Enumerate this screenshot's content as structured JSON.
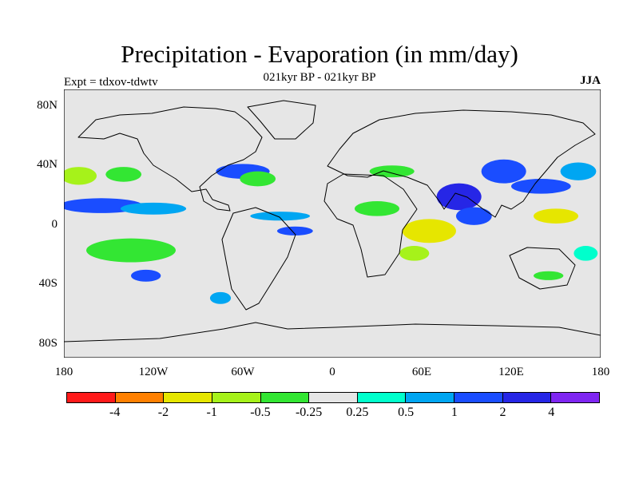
{
  "title": "Precipitation - Evaporation (in mm/day)",
  "subtitle": "021kyr BP - 021kyr BP",
  "experiment": "Expt = tdxov-tdwtv",
  "season": "JJA",
  "axes": {
    "y_ticks": [
      "80N",
      "40N",
      "0",
      "40S",
      "80S"
    ],
    "x_ticks": [
      "180",
      "120W",
      "60W",
      "0",
      "60E",
      "120E",
      "180"
    ]
  },
  "colorbar": {
    "colors": [
      "#ff1a1a",
      "#ff8000",
      "#e6e600",
      "#a6f21a",
      "#33e633",
      "#e6e6e6",
      "#00ffcc",
      "#00a6f2",
      "#1a4dff",
      "#2626e6",
      "#7f26f2"
    ],
    "labels": [
      "-4",
      "-2",
      "-1",
      "-0.5",
      "-0.25",
      "0.25",
      "0.5",
      "1",
      "2",
      "4"
    ]
  },
  "chart_data": {
    "type": "heatmap",
    "title": "Precipitation - Evaporation (in mm/day)",
    "subtitle": "021kyr BP - 021kyr BP",
    "xlim": [
      -180,
      180
    ],
    "ylim": [
      -90,
      90
    ],
    "levels": [
      -4,
      -2,
      -1,
      -0.5,
      -0.25,
      0.25,
      0.5,
      1,
      2,
      4
    ],
    "background": "#e6e6e6",
    "regions": [
      {
        "lon": -155,
        "lat": 12,
        "lon_radius": 28,
        "lat_radius": 5,
        "value": 1.5
      },
      {
        "lon": -120,
        "lat": 10,
        "lon_radius": 22,
        "lat_radius": 4,
        "value": 0.7
      },
      {
        "lon": -170,
        "lat": 32,
        "lon_radius": 12,
        "lat_radius": 6,
        "value": -0.7
      },
      {
        "lon": -140,
        "lat": 33,
        "lon_radius": 12,
        "lat_radius": 5,
        "value": -0.3
      },
      {
        "lon": -135,
        "lat": -18,
        "lon_radius": 30,
        "lat_radius": 8,
        "value": -0.3
      },
      {
        "lon": -125,
        "lat": -35,
        "lon_radius": 10,
        "lat_radius": 4,
        "value": 1.5
      },
      {
        "lon": -60,
        "lat": 35,
        "lon_radius": 18,
        "lat_radius": 5,
        "value": 1.5
      },
      {
        "lon": -50,
        "lat": 30,
        "lon_radius": 12,
        "lat_radius": 5,
        "value": -0.5
      },
      {
        "lon": -35,
        "lat": 5,
        "lon_radius": 20,
        "lat_radius": 3,
        "value": 0.6
      },
      {
        "lon": -25,
        "lat": -5,
        "lon_radius": 12,
        "lat_radius": 3,
        "value": 1.5
      },
      {
        "lon": -75,
        "lat": -50,
        "lon_radius": 7,
        "lat_radius": 4,
        "value": 0.7
      },
      {
        "lon": 30,
        "lat": 10,
        "lon_radius": 15,
        "lat_radius": 5,
        "value": -0.5
      },
      {
        "lon": 40,
        "lat": 35,
        "lon_radius": 15,
        "lat_radius": 4,
        "value": -0.4
      },
      {
        "lon": 65,
        "lat": -5,
        "lon_radius": 18,
        "lat_radius": 8,
        "value": -1.2
      },
      {
        "lon": 55,
        "lat": -20,
        "lon_radius": 10,
        "lat_radius": 5,
        "value": -0.6
      },
      {
        "lon": 85,
        "lat": 18,
        "lon_radius": 15,
        "lat_radius": 9,
        "value": 2.5
      },
      {
        "lon": 95,
        "lat": 5,
        "lon_radius": 12,
        "lat_radius": 6,
        "value": 1.5
      },
      {
        "lon": 115,
        "lat": 35,
        "lon_radius": 15,
        "lat_radius": 8,
        "value": 1.5
      },
      {
        "lon": 140,
        "lat": 25,
        "lon_radius": 20,
        "lat_radius": 5,
        "value": 1.5
      },
      {
        "lon": 150,
        "lat": 5,
        "lon_radius": 15,
        "lat_radius": 5,
        "value": -1.2
      },
      {
        "lon": 165,
        "lat": 35,
        "lon_radius": 12,
        "lat_radius": 6,
        "value": 0.6
      },
      {
        "lon": 170,
        "lat": -20,
        "lon_radius": 8,
        "lat_radius": 5,
        "value": 0.4
      },
      {
        "lon": 145,
        "lat": -35,
        "lon_radius": 10,
        "lat_radius": 3,
        "value": -0.4
      }
    ]
  }
}
